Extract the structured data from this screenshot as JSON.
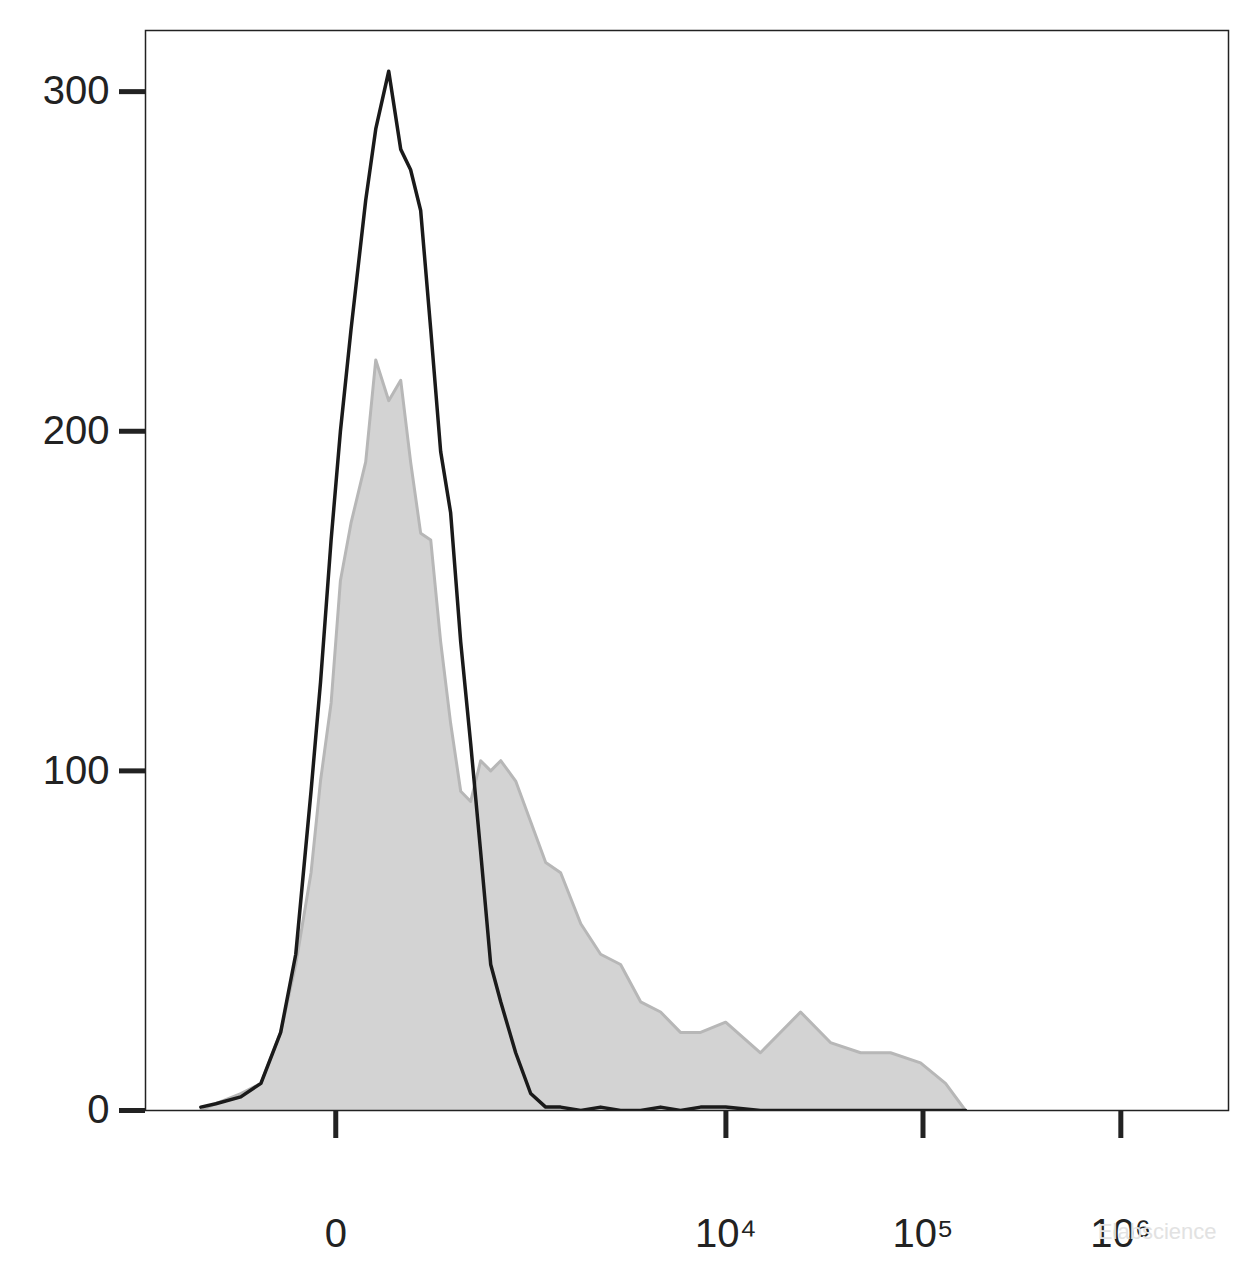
{
  "chart_data": {
    "type": "histogram",
    "x": [
      -411,
      -328,
      -218,
      -150,
      -97,
      -64,
      -36,
      -21,
      -6,
      6,
      21,
      45,
      64,
      92,
      122,
      150,
      182,
      218,
      258,
      303,
      354,
      411,
      475,
      547,
      628,
      768,
      935,
      1134,
      1370,
      1760,
      2245,
      2860,
      3640,
      4620,
      5850,
      7420,
      9970,
      15000,
      23980,
      34000,
      48350,
      68500,
      97200,
      130000,
      164000
    ],
    "series": [
      {
        "type": "area",
        "color": "#d3d3d3",
        "values": [
          0,
          2,
          5,
          8,
          23,
          43,
          70,
          97,
          120,
          156,
          173,
          191,
          221,
          209,
          215,
          191,
          170,
          168,
          138,
          114,
          94,
          91,
          103,
          100,
          103,
          97,
          85,
          73,
          70,
          55,
          46,
          43,
          32,
          29,
          23,
          23,
          26,
          17,
          29,
          20,
          17,
          17,
          14,
          8,
          0
        ]
      },
      {
        "type": "line",
        "color": "#1a1a1a",
        "values": [
          1,
          2,
          4,
          8,
          23,
          46,
          94,
          126,
          168,
          200,
          230,
          268,
          289,
          306,
          283,
          277,
          265,
          230,
          194,
          176,
          138,
          108,
          76,
          43,
          32,
          17,
          5,
          1,
          1,
          0,
          1,
          0,
          0,
          1,
          0,
          1,
          1,
          0,
          0,
          0,
          0,
          0,
          0,
          0,
          0
        ]
      }
    ],
    "xlim": [
      -880,
      3500000
    ],
    "xticks": [
      {
        "value": 0,
        "label": "0"
      },
      {
        "value": 10000,
        "label": "10⁴"
      },
      {
        "value": 100000,
        "label": "10⁵"
      },
      {
        "value": 1000000,
        "label": "10⁶"
      }
    ],
    "ylim": [
      0,
      318
    ],
    "yticks": [
      0,
      100,
      200,
      300
    ],
    "log": "x",
    "grid": false,
    "annotations": [
      "Elabscience"
    ]
  }
}
